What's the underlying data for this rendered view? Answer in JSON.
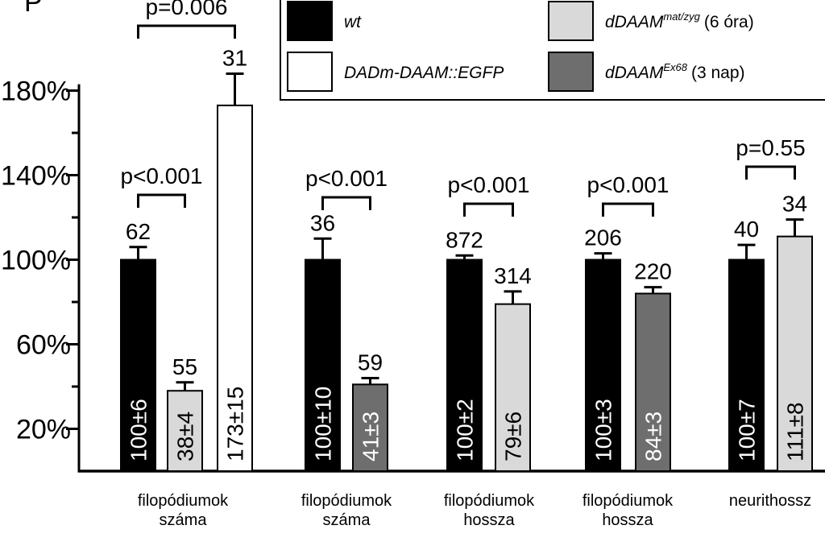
{
  "chart_data": {
    "type": "bar",
    "panel_label": "P",
    "categories": [
      [
        "filopódiumok",
        "száma"
      ],
      [
        "filopódiumok",
        "száma"
      ],
      [
        "filopódiumok",
        "hossza"
      ],
      [
        "filopódiumok",
        "hossza"
      ],
      [
        "neurithossz"
      ]
    ],
    "series": [
      {
        "name": "wt",
        "color": "#000000",
        "values": [
          100,
          100,
          100,
          100,
          100
        ],
        "errors": [
          6,
          10,
          2,
          3,
          7
        ],
        "n": [
          62,
          36,
          872,
          206,
          40
        ],
        "value_labels": [
          "100±6",
          "100±10",
          "100±2",
          "100±3",
          "100±7"
        ]
      },
      {
        "name": "DADm-DAAM::EGFP",
        "color": "#ffffff",
        "values": [
          173,
          null,
          null,
          null,
          null
        ],
        "errors": [
          15,
          null,
          null,
          null,
          null
        ],
        "n": [
          31,
          null,
          null,
          null,
          null
        ],
        "value_labels": [
          "173±15",
          null,
          null,
          null,
          null
        ]
      },
      {
        "name": "dDAAM",
        "name_superscript": "mat/zyg",
        "name_suffix": "(6 óra)",
        "color": "#d9d9d9",
        "values": [
          38,
          null,
          79,
          null,
          111
        ],
        "errors": [
          4,
          null,
          6,
          null,
          8
        ],
        "n": [
          55,
          null,
          314,
          null,
          34
        ],
        "value_labels": [
          "38±4",
          null,
          "79±6",
          null,
          "111±8"
        ]
      },
      {
        "name": "dDAAM",
        "name_superscript": "Ex68",
        "name_suffix": "(3 nap)",
        "color": "#6e6e6e",
        "values": [
          null,
          41,
          null,
          84,
          null
        ],
        "errors": [
          null,
          3,
          null,
          3,
          null
        ],
        "n": [
          null,
          59,
          null,
          220,
          null
        ],
        "value_labels": [
          null,
          "41±3",
          null,
          "84±3",
          null
        ]
      }
    ],
    "comparisons": [
      [
        "p<0.001",
        "p=0.006"
      ],
      [
        "p<0.001"
      ],
      [
        "p<0.001"
      ],
      [
        "p<0.001"
      ],
      [
        "p=0.55"
      ]
    ],
    "ylim": [
      0,
      183
    ],
    "yticks": [
      {
        "value": 20,
        "label": "20%"
      },
      {
        "value": 60,
        "label": "60%"
      },
      {
        "value": 100,
        "label": "100%"
      },
      {
        "value": 140,
        "label": "140%"
      },
      {
        "value": 180,
        "label": "180%"
      }
    ],
    "yminor_ticks": [
      40,
      80,
      120,
      160
    ]
  }
}
